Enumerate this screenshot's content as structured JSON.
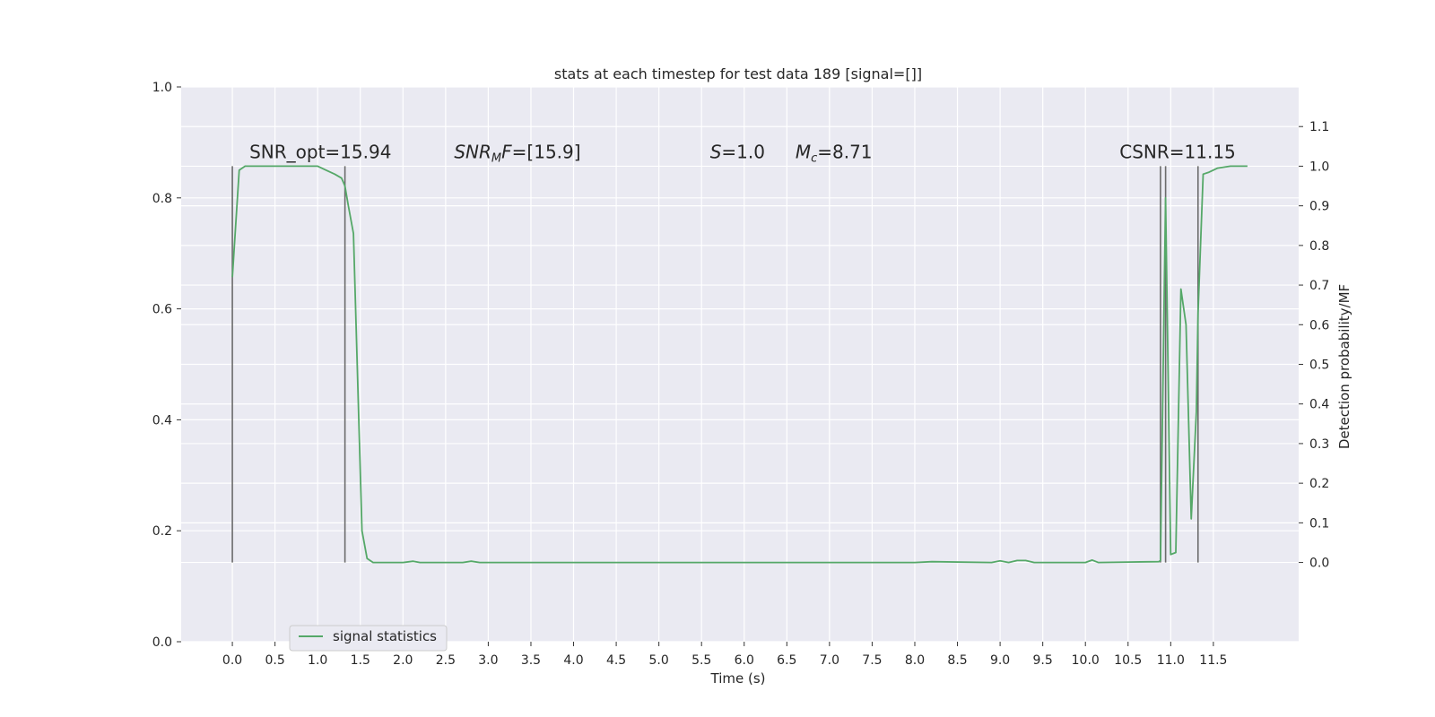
{
  "chart_data": {
    "type": "line",
    "title": "stats at each timestep for test data 189 [signal=[]]",
    "xlabel": "Time (s)",
    "ylabel": "",
    "ylabel_right": "Detection probability/MF",
    "xlim": [
      -0.6,
      12.5
    ],
    "ylim": [
      0.0,
      1.0
    ],
    "ylim_right": [
      -0.2,
      1.2
    ],
    "grid": true,
    "legend_position": "lower-left",
    "x_ticks": [
      "0.0",
      "0.5",
      "1.0",
      "1.5",
      "2.0",
      "2.5",
      "3.0",
      "3.5",
      "4.0",
      "4.5",
      "5.0",
      "5.5",
      "6.0",
      "6.5",
      "7.0",
      "7.5",
      "8.0",
      "8.5",
      "9.0",
      "9.5",
      "10.0",
      "10.5",
      "11.0",
      "11.5"
    ],
    "y_ticks_left": [
      "0.0",
      "0.2",
      "0.4",
      "0.6",
      "0.8",
      "1.0"
    ],
    "y_ticks_right": [
      "0.0",
      "0.1",
      "0.2",
      "0.3",
      "0.4",
      "0.5",
      "0.6",
      "0.7",
      "0.8",
      "0.9",
      "1.0",
      "1.1"
    ],
    "annotations": [
      {
        "text": "SNR_opt=15.94",
        "x": 0.2,
        "y": 1.02
      },
      {
        "text": "SNR_MF=[15.9]",
        "x": 2.6,
        "y": 1.02
      },
      {
        "text": "S=1.0",
        "x": 5.6,
        "y": 1.02
      },
      {
        "text": "M_c=8.71",
        "x": 6.6,
        "y": 1.02
      },
      {
        "text": "CSNR=11.15",
        "x": 10.4,
        "y": 1.02
      }
    ],
    "vertical_markers": [
      {
        "x": 0.0,
        "y": [
          0.0,
          1.0
        ]
      },
      {
        "x": 1.32,
        "y": [
          0.0,
          1.0
        ]
      },
      {
        "x": 10.88,
        "y": [
          0.0,
          1.0
        ]
      },
      {
        "x": 10.94,
        "y": [
          0.0,
          1.0
        ]
      },
      {
        "x": 11.32,
        "y": [
          0.0,
          1.0
        ]
      }
    ],
    "series": [
      {
        "name": "signal statistics",
        "color": "#55a868",
        "axis": "right",
        "x": [
          0.0,
          0.08,
          0.15,
          0.3,
          0.5,
          0.8,
          1.0,
          1.1,
          1.2,
          1.28,
          1.32,
          1.36,
          1.42,
          1.52,
          1.58,
          1.65,
          2.0,
          2.12,
          2.2,
          2.7,
          2.8,
          2.9,
          8.0,
          8.2,
          8.9,
          9.0,
          9.1,
          9.2,
          9.3,
          9.4,
          10.0,
          10.08,
          10.15,
          10.5,
          10.86,
          10.88,
          10.94,
          11.0,
          11.06,
          11.12,
          11.18,
          11.24,
          11.3,
          11.32,
          11.38,
          11.45,
          11.55,
          11.7,
          11.9
        ],
        "y": [
          0.72,
          0.99,
          1.0,
          1.0,
          1.0,
          1.0,
          1.0,
          0.99,
          0.98,
          0.97,
          0.95,
          0.9,
          0.83,
          0.08,
          0.01,
          0.0,
          0.0,
          0.003,
          0.0,
          0.0,
          0.003,
          0.0,
          0.0,
          0.002,
          0.0,
          0.004,
          0.0,
          0.005,
          0.005,
          0.0,
          0.0,
          0.006,
          0.0,
          0.001,
          0.002,
          0.005,
          0.92,
          0.02,
          0.025,
          0.69,
          0.6,
          0.11,
          0.38,
          0.63,
          0.98,
          0.985,
          0.995,
          1.0,
          1.0
        ]
      }
    ]
  }
}
